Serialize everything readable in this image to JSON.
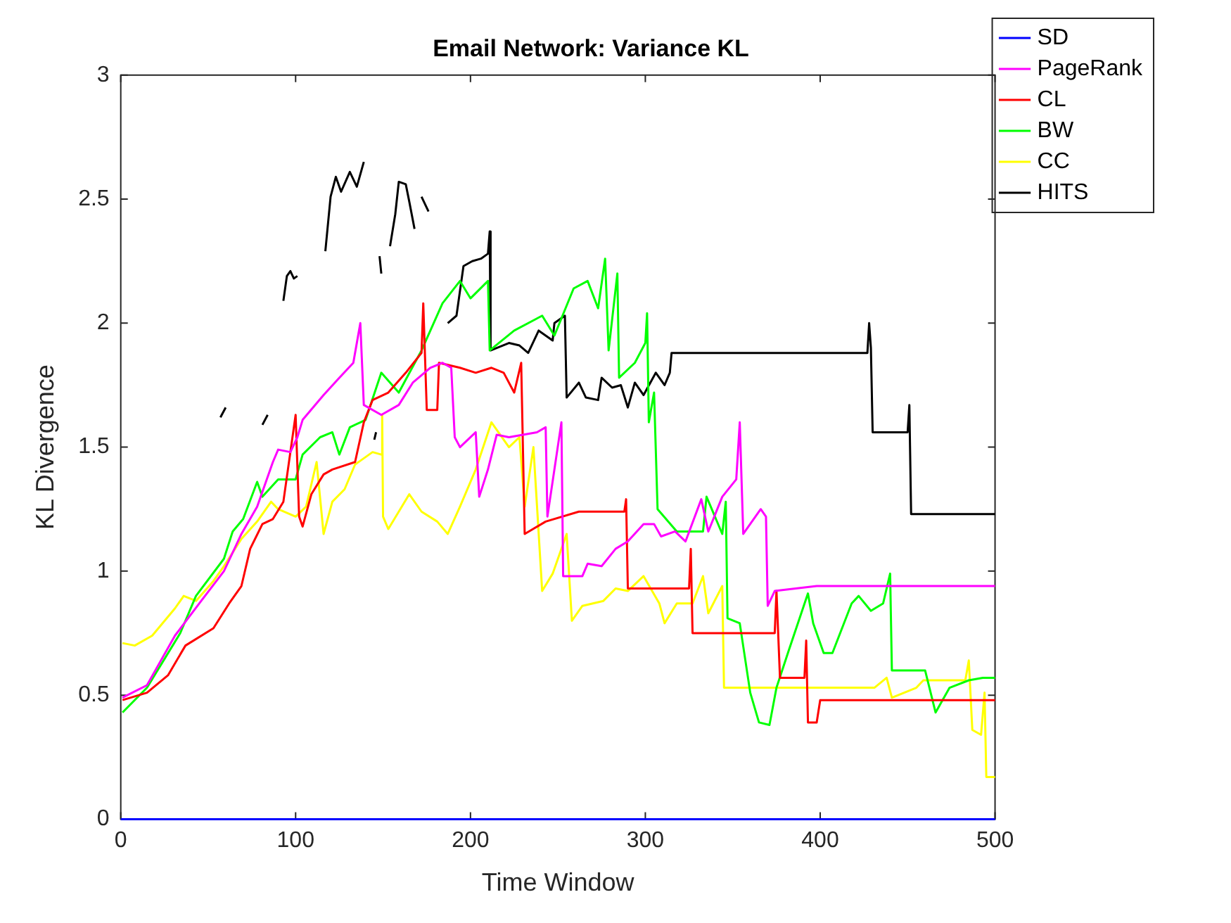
{
  "chart_data": {
    "type": "line",
    "title": "Email Network: Variance KL",
    "xlabel": "Time Window",
    "ylabel": "KL Divergence",
    "xlim": [
      0,
      500
    ],
    "ylim": [
      0,
      3
    ],
    "xticks": [
      0,
      100,
      200,
      300,
      400,
      500
    ],
    "yticks": [
      0,
      0.5,
      1,
      1.5,
      2,
      2.5,
      3
    ],
    "grid": false,
    "legend": "right",
    "marker": "none",
    "line_style": "solid",
    "series": [
      {
        "name": "SD",
        "color": "#0000ff",
        "x": [
          0,
          500
        ],
        "values": [
          0,
          0
        ]
      },
      {
        "name": "PageRank",
        "color": "#ff00ff",
        "x": [
          1,
          15,
          31,
          46,
          59,
          69,
          78,
          87,
          90,
          97,
          101,
          104,
          116,
          125,
          133,
          137,
          139,
          149,
          159,
          167,
          177,
          184,
          189,
          191,
          194,
          203,
          205,
          210,
          215,
          222,
          238,
          243,
          244,
          252,
          253,
          264,
          267,
          275,
          283,
          290,
          299,
          305,
          309,
          317,
          323,
          332,
          336,
          344,
          352,
          354,
          356,
          366,
          369,
          370,
          374,
          398,
          500
        ],
        "values": [
          0.49,
          0.54,
          0.74,
          0.88,
          1.0,
          1.15,
          1.26,
          1.44,
          1.49,
          1.48,
          1.54,
          1.61,
          1.71,
          1.78,
          1.84,
          2.0,
          1.67,
          1.63,
          1.67,
          1.76,
          1.82,
          1.84,
          1.82,
          1.54,
          1.5,
          1.56,
          1.3,
          1.41,
          1.55,
          1.54,
          1.56,
          1.58,
          1.22,
          1.6,
          0.98,
          0.98,
          1.03,
          1.02,
          1.09,
          1.12,
          1.19,
          1.19,
          1.14,
          1.16,
          1.12,
          1.29,
          1.16,
          1.3,
          1.37,
          1.6,
          1.15,
          1.25,
          1.22,
          0.86,
          0.92,
          0.94,
          0.94
        ]
      },
      {
        "name": "CL",
        "color": "#ff0000",
        "x": [
          1,
          15,
          27,
          37,
          53,
          62,
          69,
          74,
          81,
          87,
          93,
          100,
          102,
          104,
          109,
          116,
          121,
          134,
          139,
          144,
          153,
          163,
          172,
          173,
          175,
          181,
          182,
          194,
          203,
          212,
          219,
          225,
          229,
          231,
          243,
          262,
          288,
          289,
          290,
          325,
          326,
          327,
          374,
          375,
          377,
          391,
          392,
          393,
          398,
          400,
          500
        ],
        "values": [
          0.48,
          0.51,
          0.58,
          0.7,
          0.77,
          0.87,
          0.94,
          1.09,
          1.19,
          1.21,
          1.28,
          1.63,
          1.22,
          1.18,
          1.31,
          1.39,
          1.41,
          1.44,
          1.6,
          1.69,
          1.72,
          1.8,
          1.88,
          2.08,
          1.65,
          1.65,
          1.84,
          1.82,
          1.8,
          1.82,
          1.8,
          1.72,
          1.84,
          1.15,
          1.2,
          1.24,
          1.24,
          1.29,
          0.93,
          0.93,
          1.09,
          0.75,
          0.75,
          0.92,
          0.57,
          0.57,
          0.72,
          0.39,
          0.39,
          0.48,
          0.48
        ]
      },
      {
        "name": "BW",
        "color": "#00ff00",
        "x": [
          1,
          15,
          34,
          43,
          59,
          64,
          70,
          78,
          81,
          90,
          100,
          104,
          114,
          121,
          125,
          131,
          140,
          149,
          159,
          172,
          184,
          194,
          200,
          210,
          211,
          225,
          241,
          248,
          259,
          267,
          273,
          277,
          279,
          284,
          285,
          294,
          300,
          301,
          302,
          305,
          307,
          318,
          333,
          335,
          344,
          346,
          347,
          354,
          360,
          365,
          371,
          375,
          382,
          393,
          396,
          402,
          407,
          418,
          422,
          429,
          436,
          440,
          441,
          460,
          466,
          474,
          485,
          493,
          500
        ],
        "values": [
          0.43,
          0.53,
          0.75,
          0.9,
          1.05,
          1.16,
          1.21,
          1.36,
          1.3,
          1.37,
          1.37,
          1.47,
          1.54,
          1.56,
          1.47,
          1.58,
          1.61,
          1.8,
          1.72,
          1.89,
          2.08,
          2.17,
          2.1,
          2.17,
          1.89,
          1.97,
          2.03,
          1.95,
          2.14,
          2.17,
          2.06,
          2.26,
          1.89,
          2.2,
          1.78,
          1.84,
          1.92,
          2.04,
          1.6,
          1.72,
          1.25,
          1.16,
          1.16,
          1.3,
          1.15,
          1.28,
          0.81,
          0.79,
          0.51,
          0.39,
          0.38,
          0.53,
          0.68,
          0.91,
          0.79,
          0.67,
          0.67,
          0.87,
          0.9,
          0.84,
          0.87,
          0.99,
          0.6,
          0.6,
          0.43,
          0.53,
          0.56,
          0.57,
          0.57
        ]
      },
      {
        "name": "CC",
        "color": "#ffff00",
        "x": [
          1,
          8,
          18,
          31,
          36,
          43,
          53,
          59,
          69,
          78,
          86,
          90,
          100,
          106,
          112,
          116,
          121,
          128,
          134,
          144,
          149,
          149.5,
          150,
          153,
          165,
          172,
          181,
          187,
          194,
          203,
          212,
          222,
          228,
          231,
          236,
          241,
          247,
          255,
          258,
          264,
          276,
          283,
          290,
          299,
          308,
          311,
          318,
          327,
          333,
          336,
          344,
          345,
          431,
          438,
          441,
          455,
          459,
          483,
          485,
          487,
          492,
          494,
          495,
          500
        ],
        "values": [
          0.71,
          0.7,
          0.74,
          0.85,
          0.9,
          0.88,
          0.96,
          1.02,
          1.13,
          1.2,
          1.28,
          1.25,
          1.22,
          1.26,
          1.44,
          1.15,
          1.28,
          1.33,
          1.43,
          1.48,
          1.47,
          1.63,
          1.22,
          1.17,
          1.31,
          1.24,
          1.2,
          1.15,
          1.26,
          1.41,
          1.6,
          1.5,
          1.54,
          1.26,
          1.5,
          0.92,
          0.99,
          1.15,
          0.8,
          0.86,
          0.88,
          0.93,
          0.92,
          0.98,
          0.87,
          0.79,
          0.87,
          0.87,
          0.98,
          0.83,
          0.94,
          0.53,
          0.53,
          0.57,
          0.49,
          0.53,
          0.56,
          0.56,
          0.64,
          0.36,
          0.34,
          0.51,
          0.17,
          0.17
        ]
      },
      {
        "name": "HITS",
        "color": "#000000",
        "x": [
          57,
          60,
          61,
          81,
          84,
          85,
          93,
          95,
          97,
          99,
          101,
          102,
          117,
          120,
          123,
          126,
          131,
          135,
          139,
          140,
          145,
          146,
          147,
          148,
          149,
          150,
          154,
          157,
          159,
          163,
          165,
          168,
          169,
          172,
          176,
          177,
          187,
          192,
          196,
          201,
          206,
          210,
          211,
          211.5,
          222,
          228,
          233,
          239,
          247,
          248,
          254,
          255,
          262,
          266,
          273,
          275,
          281,
          286,
          290,
          294,
          299,
          306,
          311,
          314,
          315,
          427,
          428,
          429,
          430,
          450,
          451,
          452,
          500
        ],
        "values": [
          1.62,
          1.66,
          null,
          1.59,
          1.63,
          null,
          2.09,
          2.19,
          2.21,
          2.18,
          2.19,
          null,
          2.29,
          2.51,
          2.59,
          2.53,
          2.61,
          2.55,
          2.65,
          null,
          1.53,
          1.56,
          null,
          2.27,
          2.2,
          null,
          2.31,
          2.44,
          2.57,
          2.56,
          2.49,
          2.38,
          null,
          2.51,
          2.45,
          null,
          2.0,
          2.03,
          2.23,
          2.25,
          2.26,
          2.28,
          2.37,
          1.89,
          1.92,
          1.91,
          1.88,
          1.97,
          1.93,
          2.0,
          2.03,
          1.7,
          1.76,
          1.7,
          1.69,
          1.78,
          1.74,
          1.75,
          1.66,
          1.76,
          1.71,
          1.8,
          1.75,
          1.8,
          1.88,
          1.88,
          2.0,
          1.9,
          1.56,
          1.56,
          1.67,
          1.23,
          1.23
        ]
      }
    ]
  }
}
